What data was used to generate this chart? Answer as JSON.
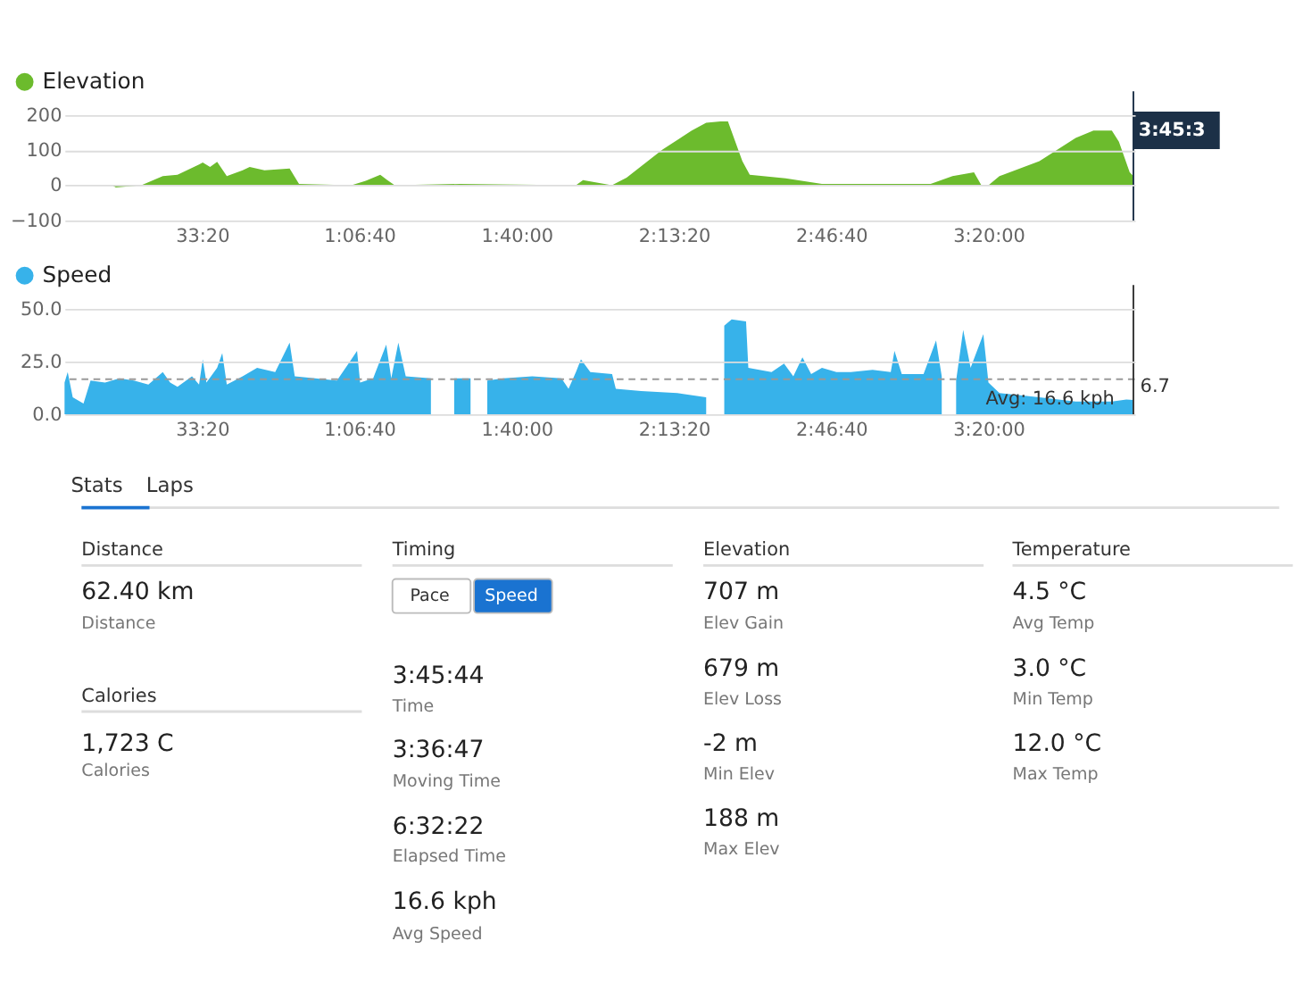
{
  "chart_data": [
    {
      "type": "area",
      "xlim": [
        252,
        13860
      ],
      "ylim": [
        -100,
        200
      ],
      "yticks": [
        -100,
        0,
        100,
        200
      ],
      "xticks": [
        {
          "value": 2000,
          "label": "33:20"
        },
        {
          "value": 4000,
          "label": "1:06:40"
        },
        {
          "value": 6000,
          "label": "1:40:00"
        },
        {
          "value": 8000,
          "label": "2:13:20"
        },
        {
          "value": 10000,
          "label": "2:46:40"
        },
        {
          "value": 12000,
          "label": "3:20:00"
        }
      ],
      "grid": "y",
      "legend": "top left",
      "x": [
        259,
        857,
        904,
        1228,
        1501,
        1688,
        1962,
        2009,
        2102,
        2192,
        2315,
        2516,
        2606,
        2794,
        3114,
        3233,
        3899,
        4082,
        4266,
        4356,
        4450,
        5278,
        6754,
        6844,
        7211,
        7398,
        7855,
        8226,
        8410,
        8593,
        8687,
        8870,
        8964,
        9421,
        9882,
        11264,
        11542,
        11815,
        11909,
        11999,
        12139,
        12186,
        12647,
        13108,
        13334,
        13568,
        13658,
        13795,
        13842
      ],
      "series": [
        {
          "name": "Elevation",
          "color": "#6cbb2d",
          "values": [
            0,
            0,
            -6,
            0,
            26,
            30,
            59,
            65,
            52,
            67,
            26,
            43,
            52,
            43,
            48,
            4,
            0,
            13,
            30,
            15,
            0,
            4,
            0,
            15,
            0,
            22,
            102,
            156,
            178,
            182,
            182,
            69,
            30,
            20,
            4,
            4,
            26,
            37,
            0,
            0,
            26,
            30,
            69,
            135,
            156,
            156,
            124,
            37,
            26
          ]
        }
      ],
      "ref_lines": [
        {
          "axis": "x",
          "value": 13842,
          "label": null,
          "color": "#1c3047"
        }
      ],
      "annotations": [
        "3:45:3"
      ]
    },
    {
      "type": "area",
      "xlim": [
        252,
        13860
      ],
      "ylim": [
        0,
        50
      ],
      "yticks": [
        {
          "value": 0,
          "label": "0.0"
        },
        {
          "value": 25,
          "label": "25.0"
        },
        {
          "value": 50,
          "label": "50.0"
        }
      ],
      "xticks": [
        {
          "value": 2000,
          "label": "33:20"
        },
        {
          "value": 4000,
          "label": "1:06:40"
        },
        {
          "value": 6000,
          "label": "1:40:00"
        },
        {
          "value": 8000,
          "label": "2:13:20"
        },
        {
          "value": 10000,
          "label": "2:46:40"
        },
        {
          "value": 12000,
          "label": "3:20:00"
        }
      ],
      "grid": "y",
      "legend": "top left",
      "x": [
        252,
        292,
        356,
        493,
        583,
        767,
        950,
        1134,
        1318,
        1501,
        1595,
        1688,
        1872,
        1962,
        2009,
        2056,
        2192,
        2257,
        2315,
        2516,
        2700,
        2930,
        3114,
        3179,
        3438,
        3715,
        3899,
        3971,
        4010,
        4176,
        4342,
        4406,
        4496,
        4590,
        4910,
        5047,
        5206,
        5414,
        5461,
        5627,
        5832,
        6199,
        6570,
        6660,
        6754,
        6818,
        6937,
        7214,
        7261,
        7582,
        8042,
        8410,
        8456,
        8640,
        8734,
        8917,
        8946,
        9241,
        9400,
        9518,
        9634,
        9745,
        9882,
        10066,
        10249,
        10526,
        10757,
        10804,
        10897,
        11174,
        11333,
        11405,
        11498,
        11588,
        11678,
        11772,
        11934,
        11999,
        12139,
        12647,
        13108,
        13568,
        13752,
        13842
      ],
      "series": [
        {
          "name": "Speed",
          "color": "#37b2ea",
          "values": [
            15,
            20,
            8,
            5,
            16,
            15,
            17,
            16,
            14,
            20,
            15,
            13,
            18,
            14,
            26,
            15,
            22,
            29,
            14,
            18,
            22,
            20,
            34,
            18,
            17,
            16,
            26,
            30,
            15,
            17,
            33,
            17,
            34,
            18,
            17,
            null,
            17,
            17,
            null,
            16,
            17,
            18,
            17,
            12,
            20,
            26,
            20,
            19,
            12,
            11,
            10,
            8,
            null,
            42,
            45,
            44,
            22,
            20,
            24,
            18,
            27,
            19,
            22,
            20,
            20,
            21,
            20,
            30,
            19,
            19,
            35,
            18,
            null,
            16,
            40,
            22,
            38,
            15,
            10,
            8,
            6,
            6,
            7,
            6.7
          ]
        }
      ],
      "ref_lines": [
        {
          "axis": "y",
          "value": 16.6,
          "label": "Avg: 16.6 kph",
          "color": "#999999",
          "line_style": "dashed"
        },
        {
          "axis": "x",
          "value": 13842,
          "label": null,
          "color": "#333333"
        }
      ],
      "annotations": [
        {
          "text": "6.7",
          "x": 13842,
          "y": 6.7
        }
      ]
    },
    {
      "type": "other",
      "annotations": [
        "Stats",
        "Laps",
        "Distance",
        "62.40 km",
        "Distance",
        "Calories",
        "1,723 C",
        "Calories",
        "Timing",
        "Pace",
        "Speed",
        "3:45:44",
        "Time",
        "3:36:47",
        "Moving Time",
        "6:32:22",
        "Elapsed Time",
        "16.6 kph",
        "Avg Speed",
        "Elevation",
        "707 m",
        "Elev Gain",
        "679 m",
        "Elev Loss",
        "-2 m",
        "Min Elev",
        "188 m",
        "Max Elev",
        "Temperature",
        "4.5 °C",
        "Avg Temp",
        "3.0 °C",
        "Min Temp",
        "12.0 °C",
        "Max Temp"
      ]
    }
  ]
}
